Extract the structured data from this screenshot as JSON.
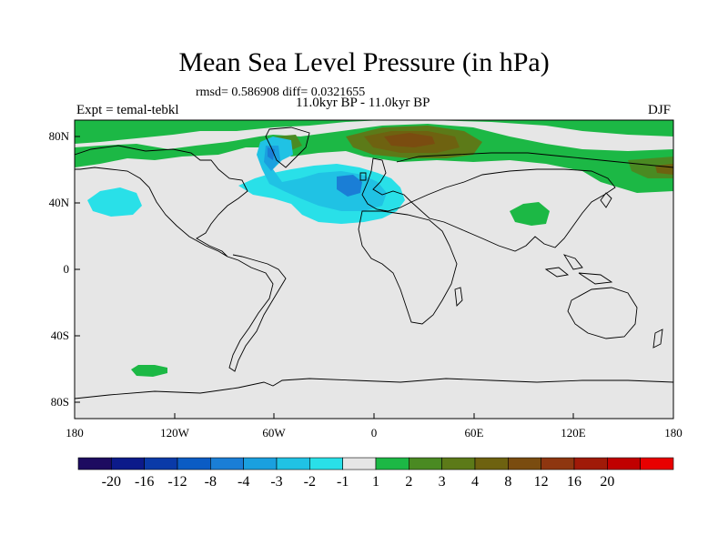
{
  "title": "Mean Sea Level Pressure (in hPa)",
  "stats": "rmsd= 0.586908 diff= 0.0321655",
  "period": "11.0kyr BP - 11.0kyr BP",
  "experiment": "Expt = temal-tebkl",
  "season": "DJF",
  "axes": {
    "lat_ticks": [
      "80N",
      "40N",
      "0",
      "40S",
      "80S"
    ],
    "lon_ticks": [
      "180",
      "120W",
      "60W",
      "0",
      "60E",
      "120E",
      "180"
    ]
  },
  "colorbar": {
    "colors": [
      "#1d0b60",
      "#0c1a8a",
      "#0a3aa8",
      "#0b5cc4",
      "#1a7ed6",
      "#1aa0df",
      "#20c2e4",
      "#29e0e8",
      "#e6e6e6",
      "#1cb845",
      "#4a8a22",
      "#5c7a18",
      "#6e6210",
      "#7a4c10",
      "#8e3610",
      "#a01a08",
      "#c00000",
      "#e80000"
    ],
    "labels": [
      "-20",
      "-16",
      "-12",
      "-8",
      "-4",
      "-3",
      "-2",
      "-1",
      "1",
      "2",
      "3",
      "4",
      "8",
      "12",
      "16",
      "20"
    ]
  },
  "colors": {
    "background_field": "#e6e6e6",
    "coast": "#000000"
  }
}
